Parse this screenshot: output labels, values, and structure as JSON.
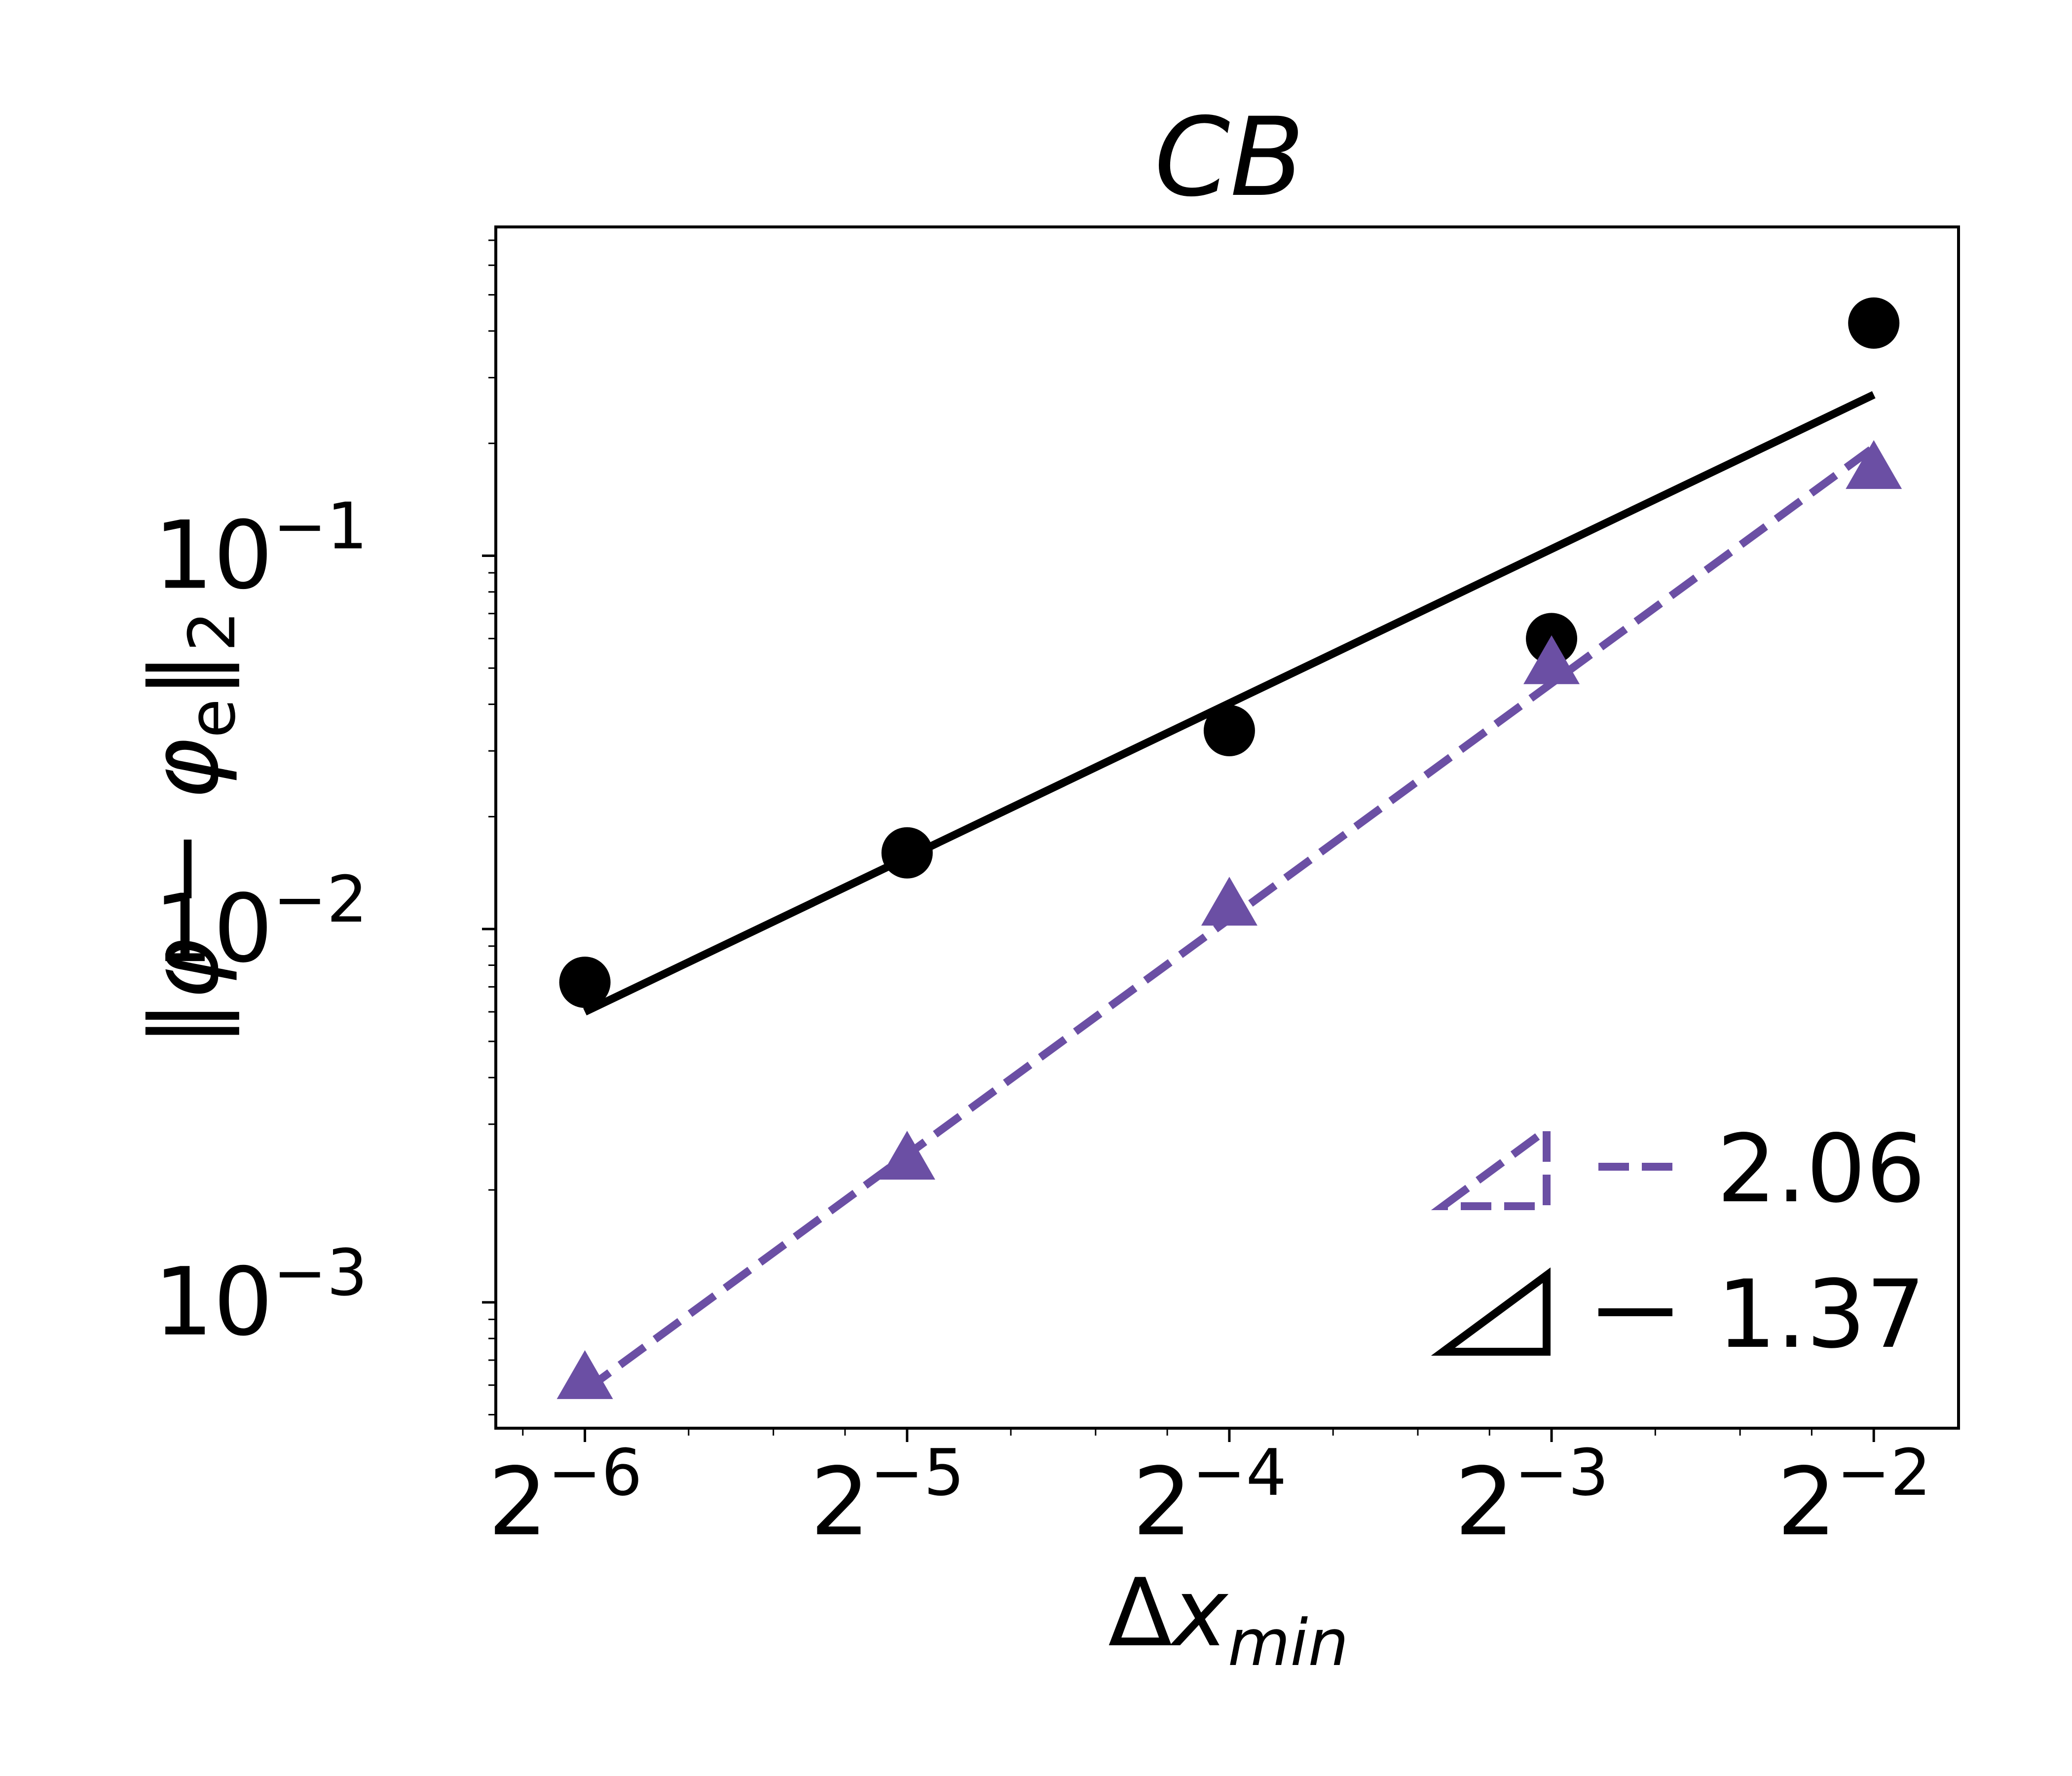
{
  "chart_data": {
    "type": "line",
    "title": "CB",
    "xlabel": "Δx_min",
    "ylabel": "‖φ − φe‖2",
    "x_scale": "log2",
    "y_scale": "log10",
    "xlim": [
      0.0129,
      0.3
    ],
    "ylim": [
      0.00046,
      0.76
    ],
    "x_ticks": [
      {
        "value": 0.015625,
        "base": "2",
        "exp": "−6"
      },
      {
        "value": 0.03125,
        "base": "2",
        "exp": "−5"
      },
      {
        "value": 0.0625,
        "base": "2",
        "exp": "−4"
      },
      {
        "value": 0.125,
        "base": "2",
        "exp": "−3"
      },
      {
        "value": 0.25,
        "base": "2",
        "exp": "−2"
      }
    ],
    "y_ticks": [
      {
        "value": 0.001,
        "base": "10",
        "exp": "−3"
      },
      {
        "value": 0.01,
        "base": "10",
        "exp": "−2"
      },
      {
        "value": 0.1,
        "base": "10",
        "exp": "−1"
      }
    ],
    "grid": false,
    "series": [
      {
        "marker": "circle",
        "color": "#000000",
        "points": [
          {
            "x": 0.015625,
            "y": 0.0072
          },
          {
            "x": 0.03125,
            "y": 0.016
          },
          {
            "x": 0.0625,
            "y": 0.034
          },
          {
            "x": 0.125,
            "y": 0.06
          },
          {
            "x": 0.25,
            "y": 0.42
          }
        ],
        "fit": {
          "slope": 1.37,
          "label": "1.37",
          "line_style": "solid",
          "x_start": 0.015625,
          "y_start": 0.006,
          "x_end": 0.25,
          "y_end": 0.27
        }
      },
      {
        "marker": "triangle",
        "color": "#6b4fa4",
        "points": [
          {
            "x": 0.015625,
            "y": 0.00062
          },
          {
            "x": 0.03125,
            "y": 0.0024
          },
          {
            "x": 0.0625,
            "y": 0.0115
          },
          {
            "x": 0.125,
            "y": 0.051
          },
          {
            "x": 0.25,
            "y": 0.17
          }
        ],
        "fit": {
          "slope": 2.06,
          "label": "2.06",
          "line_style": "dashed",
          "x_start": 0.015625,
          "y_start": 0.00058,
          "x_end": 0.25,
          "y_end": 0.195
        }
      }
    ],
    "legend": {
      "placement": "lower-right",
      "entries": [
        "2.06",
        "1.37"
      ]
    }
  }
}
